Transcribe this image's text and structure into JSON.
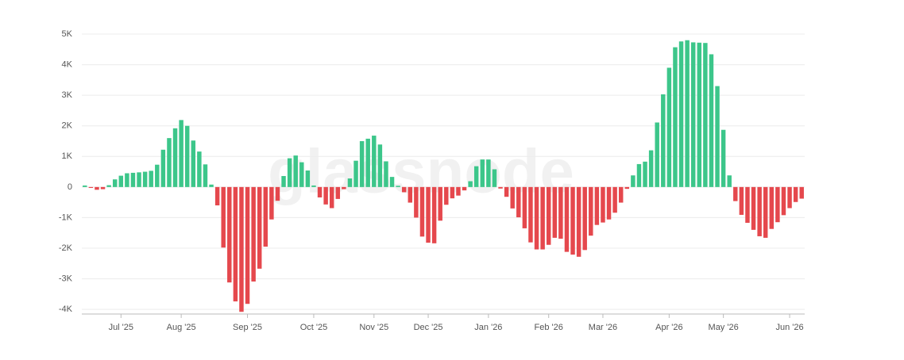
{
  "chart_data": {
    "type": "bar",
    "watermark": "glassnode",
    "categories": [
      null,
      null,
      null,
      null,
      null,
      null,
      "Jul '25",
      null,
      null,
      null,
      null,
      null,
      null,
      null,
      null,
      null,
      "Aug '25",
      null,
      null,
      null,
      null,
      null,
      null,
      null,
      null,
      null,
      null,
      "Sep '25",
      null,
      null,
      null,
      null,
      null,
      null,
      null,
      null,
      null,
      null,
      "Oct '25",
      null,
      null,
      null,
      null,
      null,
      null,
      null,
      null,
      null,
      "Nov '25",
      null,
      null,
      null,
      null,
      null,
      null,
      null,
      null,
      "Dec '25",
      null,
      null,
      null,
      null,
      null,
      null,
      null,
      null,
      null,
      "Jan '26",
      null,
      null,
      null,
      null,
      null,
      null,
      null,
      null,
      null,
      "Feb '26",
      null,
      null,
      null,
      null,
      null,
      null,
      null,
      null,
      "Mar '26",
      null,
      null,
      null,
      null,
      null,
      null,
      null,
      null,
      null,
      null,
      "Apr '26",
      null,
      null,
      null,
      null,
      null,
      null,
      null,
      null,
      "May '26",
      null,
      null,
      null,
      null,
      null,
      null,
      null,
      null,
      null,
      null,
      "Jun '26",
      null,
      null
    ],
    "values": [
      50,
      -30,
      -90,
      -70,
      60,
      250,
      370,
      450,
      465,
      480,
      500,
      530,
      730,
      1220,
      1600,
      1920,
      2190,
      2000,
      1520,
      1160,
      740,
      80,
      -600,
      -1980,
      -3120,
      -3740,
      -4080,
      -3820,
      -3090,
      -2670,
      -1950,
      -1060,
      -450,
      360,
      940,
      1030,
      810,
      540,
      50,
      -340,
      -570,
      -690,
      -390,
      -70,
      280,
      860,
      1500,
      1580,
      1680,
      1390,
      840,
      330,
      40,
      -170,
      -510,
      -1000,
      -1620,
      -1820,
      -1840,
      -1100,
      -580,
      -370,
      -280,
      -110,
      190,
      680,
      900,
      900,
      580,
      -50,
      -320,
      -700,
      -990,
      -1350,
      -1810,
      -2040,
      -2040,
      -1890,
      -1660,
      -1690,
      -2120,
      -2210,
      -2280,
      -2060,
      -1590,
      -1240,
      -1160,
      -1060,
      -840,
      -510,
      -60,
      380,
      750,
      830,
      1200,
      2110,
      3030,
      3900,
      4570,
      4760,
      4800,
      4730,
      4720,
      4710,
      4340,
      3300,
      1870,
      380,
      -460,
      -910,
      -1170,
      -1400,
      -1610,
      -1660,
      -1370,
      -1150,
      -920,
      -690,
      -490,
      -380
    ],
    "positive_color": "#3cc68a",
    "negative_color": "#e5484d",
    "ylim": [
      -4100,
      5000
    ],
    "yticks": [
      {
        "value": -4000,
        "label": "-4K"
      },
      {
        "value": -3000,
        "label": "-3K"
      },
      {
        "value": -2000,
        "label": "-2K"
      },
      {
        "value": -1000,
        "label": "-1K"
      },
      0,
      {
        "value": 1000,
        "label": "1K"
      },
      {
        "value": 2000,
        "label": "2K"
      },
      {
        "value": 3000,
        "label": "3K"
      },
      {
        "value": 4000,
        "label": "4K"
      },
      {
        "value": 5000,
        "label": "5K"
      }
    ],
    "grid": true
  }
}
